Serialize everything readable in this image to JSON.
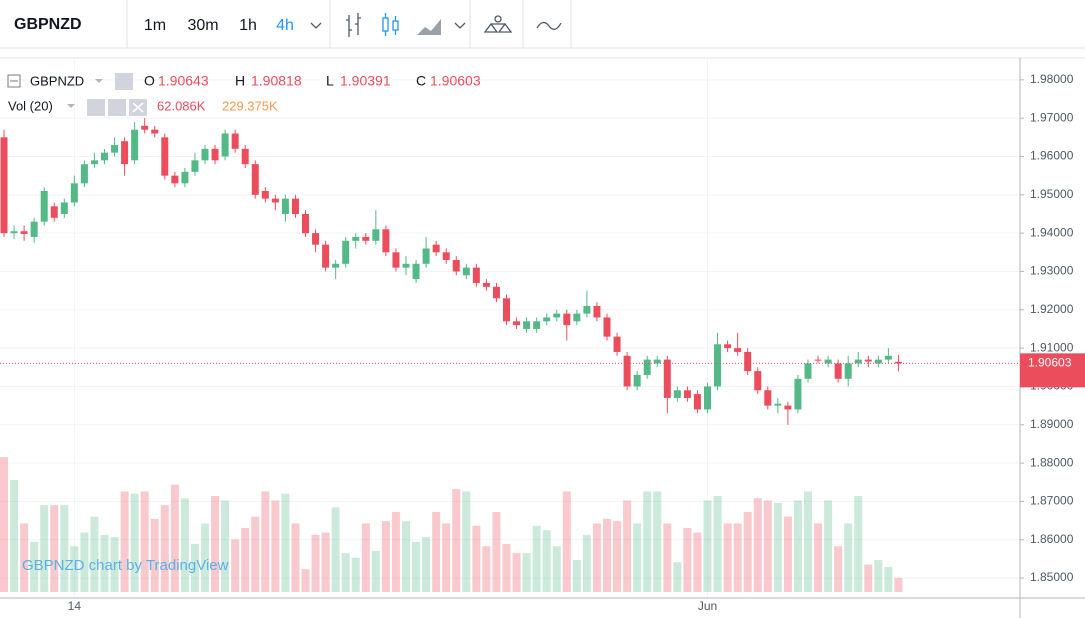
{
  "toolbar": {
    "symbol": "GBPNZD",
    "intervals": [
      "1m",
      "30m",
      "1h",
      "4h"
    ],
    "active_interval": "4h"
  },
  "legend": {
    "symbol": "GBPNZD",
    "open_label": "O",
    "high_label": "H",
    "low_label": "L",
    "close_label": "C",
    "volume_title": "Vol (20)",
    "volume": "62.086K",
    "volume_ma": "229.375K"
  },
  "watermark": "GBPNZD chart by TradingView",
  "chart_data": {
    "type": "candlestick",
    "categories": [
      null,
      null,
      null,
      null,
      null,
      null,
      null,
      "14",
      null,
      null,
      null,
      null,
      null,
      null,
      null,
      null,
      null,
      null,
      null,
      null,
      null,
      null,
      null,
      null,
      null,
      null,
      null,
      null,
      null,
      null,
      null,
      null,
      null,
      null,
      null,
      null,
      null,
      null,
      null,
      null,
      null,
      null,
      null,
      null,
      null,
      null,
      null,
      null,
      null,
      null,
      null,
      null,
      null,
      null,
      null,
      null,
      null,
      null,
      null,
      null,
      null,
      null,
      null,
      null,
      null,
      null,
      null,
      null,
      null,
      null,
      "Jun",
      null,
      null,
      null,
      null,
      null,
      null,
      null,
      null,
      null,
      null,
      null,
      null,
      null,
      null,
      null,
      null,
      null,
      null,
      null
    ],
    "open": [
      1.965,
      1.94,
      1.9405,
      1.939,
      1.943,
      1.947,
      1.945,
      1.948,
      1.953,
      1.958,
      1.959,
      1.961,
      1.964,
      1.959,
      1.968,
      1.967,
      1.965,
      1.955,
      1.953,
      1.956,
      1.959,
      1.962,
      1.96,
      1.966,
      1.962,
      1.958,
      1.951,
      1.949,
      1.945,
      1.949,
      1.945,
      1.94,
      1.937,
      1.931,
      1.932,
      1.938,
      1.939,
      1.938,
      1.941,
      1.935,
      1.931,
      1.928,
      1.932,
      1.937,
      1.935,
      1.933,
      1.929,
      1.931,
      1.927,
      1.926,
      1.923,
      1.917,
      1.915,
      1.915,
      1.917,
      1.918,
      1.919,
      1.917,
      1.919,
      1.921,
      1.918,
      1.913,
      1.908,
      1.9,
      1.903,
      1.906,
      1.907,
      1.897,
      1.899,
      1.898,
      1.894,
      1.9,
      1.911,
      1.91,
      1.909,
      1.904,
      1.899,
      1.895,
      1.895,
      1.894,
      1.902,
      1.907,
      1.906,
      1.906,
      1.902,
      1.906,
      1.907,
      1.906,
      1.907,
      1.90643
    ],
    "high": [
      1.967,
      1.942,
      1.942,
      1.944,
      1.952,
      1.948,
      1.949,
      1.955,
      1.959,
      1.961,
      1.962,
      1.965,
      1.965,
      1.969,
      1.97,
      1.968,
      1.966,
      1.956,
      1.957,
      1.961,
      1.963,
      1.963,
      1.967,
      1.967,
      1.963,
      1.959,
      1.952,
      1.95,
      1.95,
      1.95,
      1.946,
      1.941,
      1.938,
      1.933,
      1.939,
      1.94,
      1.94,
      1.946,
      1.942,
      1.936,
      1.934,
      1.933,
      1.939,
      1.938,
      1.936,
      1.934,
      1.932,
      1.932,
      1.928,
      1.927,
      1.924,
      1.918,
      1.918,
      1.918,
      1.919,
      1.92,
      1.92,
      1.92,
      1.925,
      1.922,
      1.919,
      1.914,
      1.909,
      1.904,
      1.908,
      1.908,
      1.908,
      1.9,
      1.9,
      1.899,
      1.901,
      1.914,
      1.912,
      1.914,
      1.91,
      1.905,
      1.9,
      1.897,
      1.896,
      1.903,
      1.907,
      1.908,
      1.908,
      1.907,
      1.908,
      1.909,
      1.908,
      1.908,
      1.91,
      1.90818
    ],
    "low": [
      1.939,
      1.9385,
      1.938,
      1.9375,
      1.942,
      1.943,
      1.944,
      1.947,
      1.952,
      1.957,
      1.958,
      1.96,
      1.955,
      1.958,
      1.966,
      1.965,
      1.954,
      1.952,
      1.952,
      1.955,
      1.958,
      1.958,
      1.959,
      1.961,
      1.957,
      1.949,
      1.948,
      1.946,
      1.943,
      1.944,
      1.939,
      1.935,
      1.93,
      1.928,
      1.931,
      1.936,
      1.937,
      1.937,
      1.934,
      1.93,
      1.929,
      1.927,
      1.931,
      1.934,
      1.932,
      1.929,
      1.928,
      1.926,
      1.925,
      1.922,
      1.916,
      1.915,
      1.914,
      1.914,
      1.916,
      1.917,
      1.912,
      1.916,
      1.918,
      1.917,
      1.912,
      1.908,
      1.899,
      1.899,
      1.902,
      1.905,
      1.893,
      1.896,
      1.896,
      1.893,
      1.893,
      1.899,
      1.909,
      1.908,
      1.903,
      1.898,
      1.894,
      1.893,
      1.89,
      1.893,
      1.901,
      1.906,
      1.905,
      1.901,
      1.9,
      1.905,
      1.905,
      1.905,
      1.906,
      1.90391
    ],
    "close": [
      1.94,
      1.9405,
      1.9398,
      1.943,
      1.951,
      1.944,
      1.948,
      1.953,
      1.958,
      1.959,
      1.961,
      1.963,
      1.958,
      1.967,
      1.967,
      1.966,
      1.955,
      1.953,
      1.956,
      1.959,
      1.962,
      1.959,
      1.966,
      1.962,
      1.958,
      1.95,
      1.949,
      1.948,
      1.949,
      1.945,
      1.94,
      1.937,
      1.931,
      1.932,
      1.938,
      1.939,
      1.938,
      1.941,
      1.935,
      1.931,
      1.932,
      1.932,
      1.936,
      1.935,
      1.933,
      1.93,
      1.931,
      1.927,
      1.926,
      1.923,
      1.917,
      1.916,
      1.917,
      1.917,
      1.918,
      1.919,
      1.916,
      1.919,
      1.921,
      1.918,
      1.913,
      1.909,
      1.9,
      1.903,
      1.907,
      1.907,
      1.897,
      1.899,
      1.897,
      1.894,
      1.9,
      1.911,
      1.91,
      1.909,
      1.904,
      1.899,
      1.895,
      1.8955,
      1.894,
      1.902,
      1.906,
      1.9068,
      1.907,
      1.902,
      1.906,
      1.907,
      1.9065,
      1.907,
      1.908,
      1.90603
    ],
    "volume": [
      590000,
      490000,
      300000,
      220000,
      380000,
      380000,
      380000,
      200000,
      260000,
      330000,
      250000,
      240000,
      440000,
      430000,
      440000,
      320000,
      380000,
      470000,
      410000,
      210000,
      300000,
      420000,
      400000,
      230000,
      280000,
      330000,
      440000,
      400000,
      430000,
      300000,
      100000,
      250000,
      260000,
      370000,
      170000,
      150000,
      300000,
      180000,
      310000,
      350000,
      310000,
      220000,
      240000,
      350000,
      300000,
      450000,
      440000,
      290000,
      200000,
      350000,
      210000,
      170000,
      170000,
      290000,
      270000,
      200000,
      440000,
      140000,
      250000,
      300000,
      320000,
      310000,
      400000,
      300000,
      440000,
      440000,
      300000,
      130000,
      280000,
      260000,
      400000,
      420000,
      300000,
      300000,
      350000,
      410000,
      400000,
      390000,
      330000,
      400000,
      440000,
      300000,
      400000,
      200000,
      300000,
      420000,
      120000,
      140000,
      110000,
      62086
    ],
    "ylim": [
      1.8448,
      1.9857
    ],
    "yticks": [
      {
        "value": 1.85,
        "label": "1.85000"
      },
      {
        "value": 1.86,
        "label": "1.86000"
      },
      {
        "value": 1.87,
        "label": "1.87000"
      },
      {
        "value": 1.88,
        "label": "1.88000"
      },
      {
        "value": 1.89,
        "label": "1.89000"
      },
      {
        "value": 1.9,
        "label": "1.90000"
      },
      {
        "value": 1.91,
        "label": "1.91000"
      },
      {
        "value": 1.92,
        "label": "1.92000"
      },
      {
        "value": 1.93,
        "label": "1.93000"
      },
      {
        "value": 1.94,
        "label": "1.94000"
      },
      {
        "value": 1.95,
        "label": "1.95000"
      },
      {
        "value": 1.96,
        "label": "1.96000"
      },
      {
        "value": 1.97,
        "label": "1.97000"
      },
      {
        "value": 1.98,
        "label": "1.98000"
      }
    ],
    "vol_ylim": [
      0,
      700000
    ],
    "up_color": "#53b987",
    "down_color": "#eb4d5c",
    "grid": true
  }
}
